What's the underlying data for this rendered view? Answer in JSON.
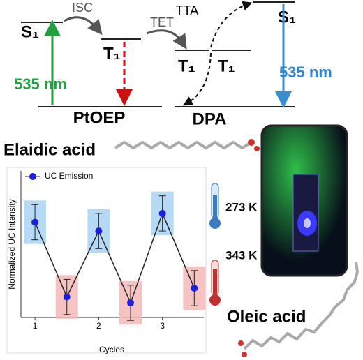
{
  "diagram": {
    "s1_left": "S₁",
    "isc": "ISC",
    "t1_ptoep": "T₁",
    "tet": "TET",
    "tta": "TTA",
    "t1_dpa_a": "T₁",
    "t1_dpa_b": "T₁",
    "s1_right": "S₁",
    "wavelength_in": "535 nm",
    "wavelength_out": "535 nm",
    "sensitizer": "PtOEP",
    "annihilator": "DPA",
    "elaidic": "Elaidic acid",
    "oleic": "Oleic acid",
    "temp_cold": "273 K",
    "temp_hot": "343 K"
  },
  "chart_data": {
    "type": "line",
    "xlabel": "Cycles",
    "ylabel": "Normalized UC Intensity",
    "x": [
      1,
      1.5,
      2,
      2.5,
      3,
      3.5
    ],
    "xlim": [
      0.78,
      3.65
    ],
    "xticks": [
      1,
      2,
      3
    ],
    "ylim": [
      0,
      1
    ],
    "series": [
      {
        "name": "UC Emission",
        "color": "#1f1fe0",
        "values": [
          0.65,
          0.14,
          0.59,
          0.1,
          0.71,
          0.2
        ],
        "errors": [
          0.12,
          0.12,
          0.12,
          0.12,
          0.12,
          0.12
        ]
      }
    ],
    "box_colors": [
      "#a9d3f3",
      "#f5b9b9"
    ],
    "legend": "upper left"
  }
}
